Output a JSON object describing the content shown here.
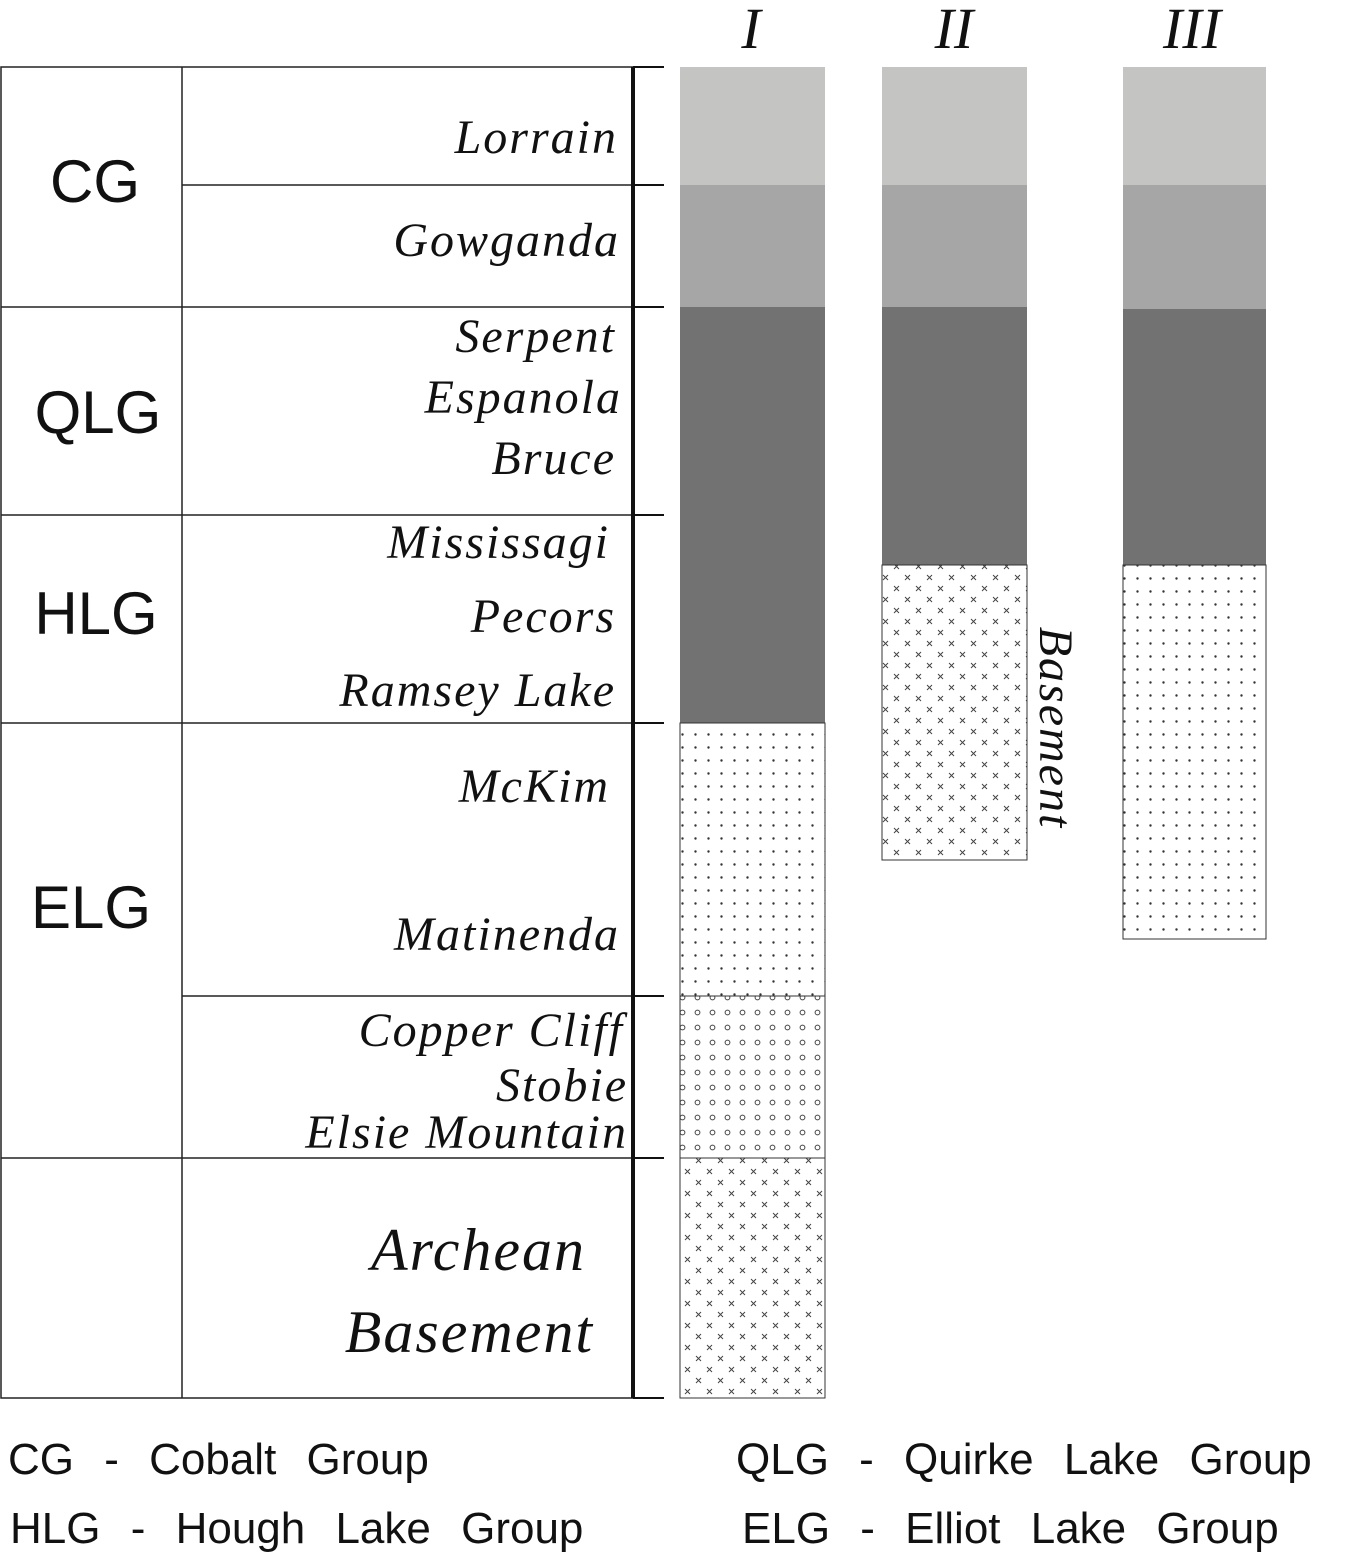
{
  "columns": [
    "I",
    "II",
    "III"
  ],
  "groups": [
    {
      "abbr": "CG",
      "name": "Cobalt Group"
    },
    {
      "abbr": "QLG",
      "name": "Quirke Lake Group"
    },
    {
      "abbr": "HLG",
      "name": "Hough Lake Group"
    },
    {
      "abbr": "ELG",
      "name": "Elliot Lake Group"
    }
  ],
  "formations": {
    "lorrain": "Lorrain",
    "gowganda": "Gowganda",
    "serpent": "Serpent",
    "espanola": "Espanola",
    "bruce": "Bruce",
    "mississagi": "Mississagi",
    "pecors": "Pecors",
    "ramsey_lake": "Ramsey Lake",
    "mckim": "McKim",
    "matinenda": "Matinenda",
    "copper_cliff": "Copper Cliff",
    "stobie": "Stobie",
    "elsie_mountain": "Elsie Mountain",
    "archean": "Archean",
    "basement": "Basement"
  },
  "column_ii_label": "Basement",
  "legend": [
    "CG - Cobalt Group",
    "QLG - Quirke Lake Group",
    "HLG - Hough Lake Group",
    "ELG - Elliot Lake Group"
  ],
  "colors": {
    "light_gray": "#c4c4c3",
    "mid_gray": "#a6a6a6",
    "dark_gray": "#737273",
    "line": "#222222"
  }
}
